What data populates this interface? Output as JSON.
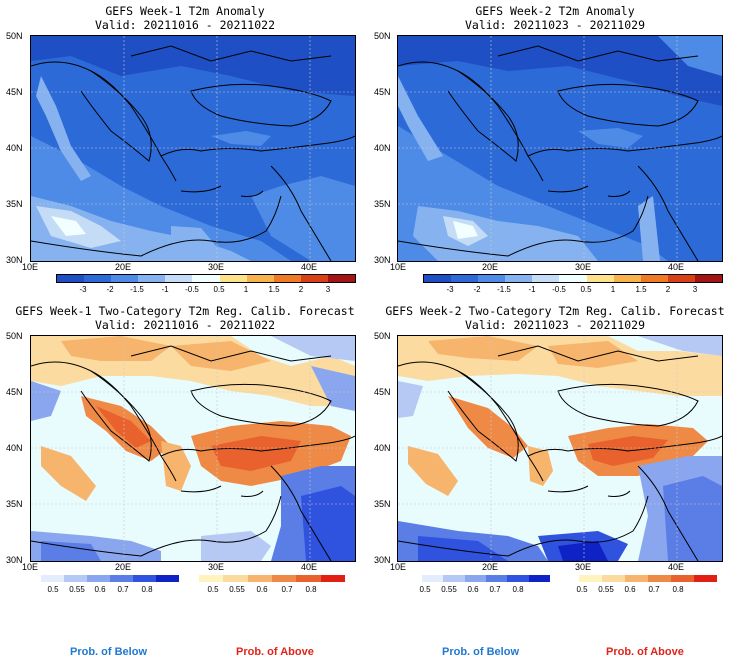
{
  "panels": [
    {
      "title": "GEFS Week-1 T2m Anomaly",
      "valid": "Valid: 20211016 - 20211022"
    },
    {
      "title": "GEFS Week-2 T2m Anomaly",
      "valid": "Valid: 20211023 - 20211029"
    },
    {
      "title": "GEFS Week-1 Two-Category T2m Reg. Calib. Forecast",
      "valid": "Valid: 20211016 - 20211022"
    },
    {
      "title": "GEFS Week-2 Two-Category T2m Reg. Calib. Forecast",
      "valid": "Valid: 20211023 - 20211029"
    }
  ],
  "axes": {
    "lat_labels": [
      "50N",
      "45N",
      "40N",
      "35N",
      "30N"
    ],
    "lon_labels": [
      "10E",
      "20E",
      "30E",
      "40E"
    ]
  },
  "anomaly_colorbar": {
    "labels": [
      "-3",
      "-2",
      "-1.5",
      "-1",
      "-0.5",
      "0.5",
      "1",
      "1.5",
      "2",
      "3"
    ],
    "colors": [
      "#1e4fc4",
      "#2c6ad8",
      "#4d8be6",
      "#86b3f0",
      "#c4dcf6",
      "#f2ffff",
      "#fde28c",
      "#f5b34b",
      "#ee7a26",
      "#d8401a",
      "#a31414"
    ]
  },
  "prob_below": {
    "labels": [
      "0.5",
      "0.55",
      "0.6",
      "0.7",
      "0.8"
    ],
    "colors": [
      "#e4edfb",
      "#b6c9f4",
      "#8aa6ee",
      "#5b7de6",
      "#2f52df",
      "#0f22c6"
    ],
    "caption": "Prob. of Below",
    "caption_color": "#1f78d1"
  },
  "prob_above": {
    "labels": [
      "0.5",
      "0.55",
      "0.6",
      "0.7",
      "0.8"
    ],
    "colors": [
      "#fff3c0",
      "#fcdba0",
      "#f7b46c",
      "#ef8a46",
      "#e9622e",
      "#e21f15"
    ],
    "caption": "Prob. of Above",
    "caption_color": "#e0241a"
  }
}
